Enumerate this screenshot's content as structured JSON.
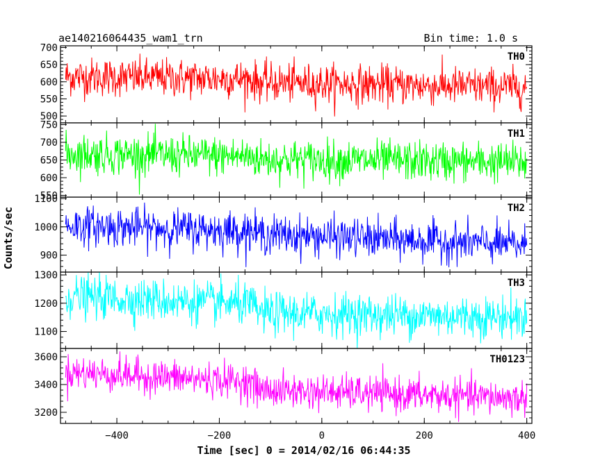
{
  "header": {
    "left_title": "ae140216064435_wam1_trn",
    "right_title": "Bin time: 1.0 s"
  },
  "chart_data": {
    "type": "line",
    "xlabel": "Time [sec] 0 = 2014/02/16 06:44:35",
    "ylabel": "Counts/sec",
    "xlim": [
      -510,
      410
    ],
    "xticks": [
      -400,
      -200,
      0,
      200,
      400
    ],
    "x_range_data": [
      -500,
      400
    ],
    "bin_time_s": 1.0,
    "grid": false,
    "panels": [
      {
        "name": "TH0",
        "color": "#ff0000",
        "ylim": [
          480,
          705
        ],
        "yticks": [
          500,
          550,
          600,
          650,
          700
        ],
        "trend": [
          [
            -500,
            615
          ],
          [
            -140,
            608
          ],
          [
            -120,
            598
          ],
          [
            400,
            583
          ]
        ],
        "noise_sd": 28
      },
      {
        "name": "TH1",
        "color": "#00ff00",
        "ylim": [
          545,
          755
        ],
        "yticks": [
          550,
          600,
          650,
          700,
          750
        ],
        "trend": [
          [
            -500,
            668
          ],
          [
            -140,
            660
          ],
          [
            -120,
            652
          ],
          [
            400,
            643
          ]
        ],
        "noise_sd": 28
      },
      {
        "name": "TH2",
        "color": "#0000ff",
        "ylim": [
          840,
          1105
        ],
        "yticks": [
          900,
          1000,
          1100
        ],
        "trend": [
          [
            -500,
            1005
          ],
          [
            -140,
            985
          ],
          [
            -120,
            975
          ],
          [
            400,
            935
          ]
        ],
        "noise_sd": 34
      },
      {
        "name": "TH3",
        "color": "#00ffff",
        "ylim": [
          1040,
          1310
        ],
        "yticks": [
          1100,
          1200,
          1300
        ],
        "trend": [
          [
            -500,
            1225
          ],
          [
            -140,
            1195
          ],
          [
            -120,
            1165
          ],
          [
            400,
            1150
          ]
        ],
        "noise_sd": 37
      },
      {
        "name": "TH0123",
        "color": "#ff00ff",
        "ylim": [
          3120,
          3660
        ],
        "yticks": [
          3200,
          3400,
          3600
        ],
        "trend": [
          [
            -500,
            3490
          ],
          [
            -140,
            3420
          ],
          [
            -120,
            3360
          ],
          [
            400,
            3300
          ]
        ],
        "noise_sd": 62
      }
    ]
  }
}
